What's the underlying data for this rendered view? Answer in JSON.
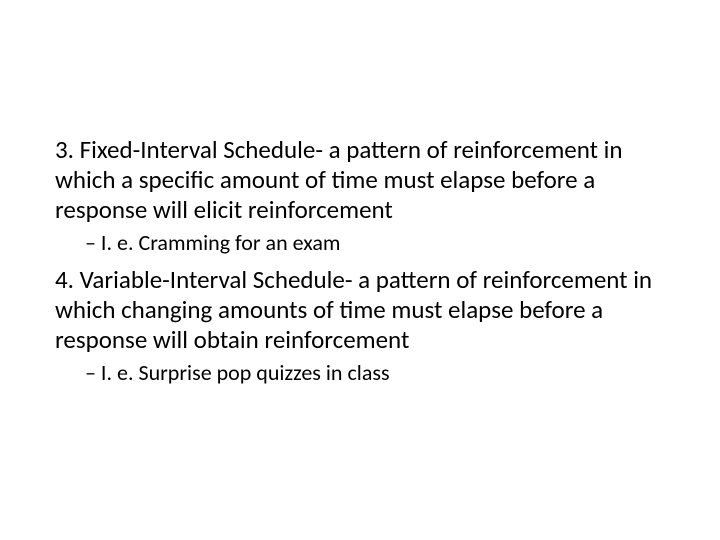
{
  "slide": {
    "background_color": "#ffffff",
    "text_color": "#000000",
    "font_family": "Calibri",
    "body_fontsize_pt": 25,
    "sub_fontsize_pt": 22,
    "items": [
      {
        "text": "3. Fixed-Interval Schedule- a pattern of reinforcement in which a specific amount of time must elapse before a response will elicit reinforcement",
        "sub": "– I. e. Cramming for an exam"
      },
      {
        "text": "4. Variable-Interval Schedule- a pattern of reinforcement in which changing amounts of time must elapse before a response will obtain reinforcement",
        "sub": "– I. e. Surprise pop quizzes in class"
      }
    ]
  }
}
